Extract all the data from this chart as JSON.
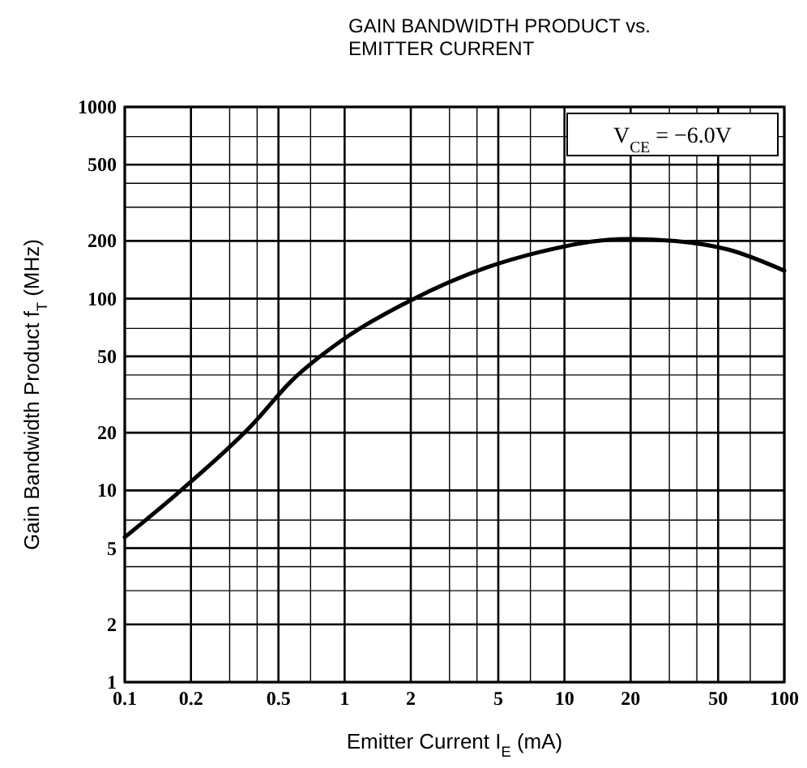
{
  "chart_data": {
    "type": "line",
    "title": "GAIN BANDWIDTH PRODUCT vs.\nEMITTER CURRENT",
    "xlabel": "Emitter Current  I$_{E}$ (mA)",
    "ylabel": "Gain Bandwidth Product  f$_{T}$ (MHz)",
    "annotations": [
      "V$_{CE}$ = −6.0V"
    ],
    "log": "xy",
    "grid": true,
    "marker": "none",
    "line_style": "solid",
    "xlim": [
      0.1,
      100
    ],
    "ylim": [
      1,
      1000
    ],
    "xticks": [
      {
        "value": 0.1,
        "label": "0.1"
      },
      {
        "value": 0.2,
        "label": "0.2"
      },
      {
        "value": 0.3,
        "label": null
      },
      {
        "value": 0.4,
        "label": null
      },
      {
        "value": 0.5,
        "label": "0.5"
      },
      {
        "value": 0.7,
        "label": null
      },
      1,
      2,
      {
        "value": 3,
        "label": null
      },
      {
        "value": 4,
        "label": null
      },
      5,
      {
        "value": 7,
        "label": null
      },
      10,
      20,
      {
        "value": 30,
        "label": null
      },
      {
        "value": 40,
        "label": null
      },
      50,
      {
        "value": 70,
        "label": null
      },
      100
    ],
    "yticks": [
      1,
      2,
      {
        "value": 3,
        "label": null
      },
      {
        "value": 4,
        "label": null
      },
      5,
      {
        "value": 7,
        "label": null
      },
      10,
      20,
      {
        "value": 30,
        "label": null
      },
      {
        "value": 40,
        "label": null
      },
      50,
      {
        "value": 70,
        "label": null
      },
      100,
      200,
      {
        "value": 300,
        "label": null
      },
      {
        "value": 400,
        "label": null
      },
      500,
      {
        "value": 700,
        "label": null
      },
      1000
    ],
    "series": [
      {
        "color": "#000000",
        "x": [
          0.1,
          0.18,
          0.38,
          0.57,
          1,
          2,
          4.4,
          7.7,
          14,
          20,
          32,
          56,
          100
        ],
        "values": [
          5.7,
          10,
          22,
          37,
          62,
          98,
          145,
          175,
          200,
          205,
          200,
          180,
          140
        ]
      }
    ]
  }
}
